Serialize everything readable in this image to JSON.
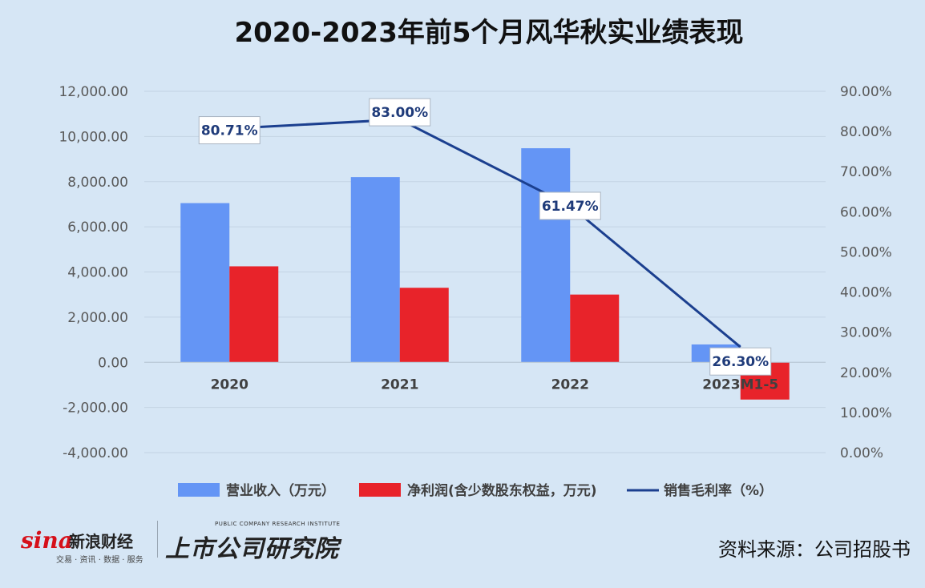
{
  "chart_data": {
    "type": "bar",
    "title": "2020-2023年前5个月风华秋实业绩表现",
    "categories": [
      "2020",
      "2021",
      "2022",
      "2023M1-5"
    ],
    "series": [
      {
        "name": "营业收入（万元）",
        "kind": "bar",
        "axis": "left",
        "color": "#6495f5",
        "values": [
          7050,
          8200,
          9480,
          790
        ]
      },
      {
        "name": "净利润(含少数股东权益，万元)",
        "kind": "bar",
        "axis": "left",
        "color": "#e8232a",
        "values": [
          4250,
          3300,
          3000,
          -1650
        ]
      },
      {
        "name": "销售毛利率（%）",
        "kind": "line",
        "axis": "right",
        "color": "#1b3f8f",
        "values": [
          80.71,
          83.0,
          61.47,
          26.3
        ],
        "labels": [
          "80.71%",
          "83.00%",
          "61.47%",
          "26.30%"
        ]
      }
    ],
    "left_axis": {
      "min": -4000,
      "max": 12000,
      "step": 2000,
      "ticks": [
        "12,000.00",
        "10,000.00",
        "8,000.00",
        "6,000.00",
        "4,000.00",
        "2,000.00",
        "0.00",
        "-2,000.00",
        "-4,000.00"
      ]
    },
    "right_axis": {
      "min": 0,
      "max": 90,
      "step": 10,
      "ticks": [
        "90.00%",
        "80.00%",
        "70.00%",
        "60.00%",
        "50.00%",
        "40.00%",
        "30.00%",
        "20.00%",
        "10.00%",
        "0.00%"
      ]
    },
    "grid": true,
    "legend_position": "bottom"
  },
  "footer": {
    "sina_word": "sina",
    "sina_cn": "新浪财经",
    "sina_sub": "交易 · 资讯 · 数据 · 服务",
    "institute_en": "PUBLIC COMPANY RESEARCH INSTITUTE",
    "institute_cn": "上市公司研究院",
    "source": "资料来源：公司招股书"
  }
}
